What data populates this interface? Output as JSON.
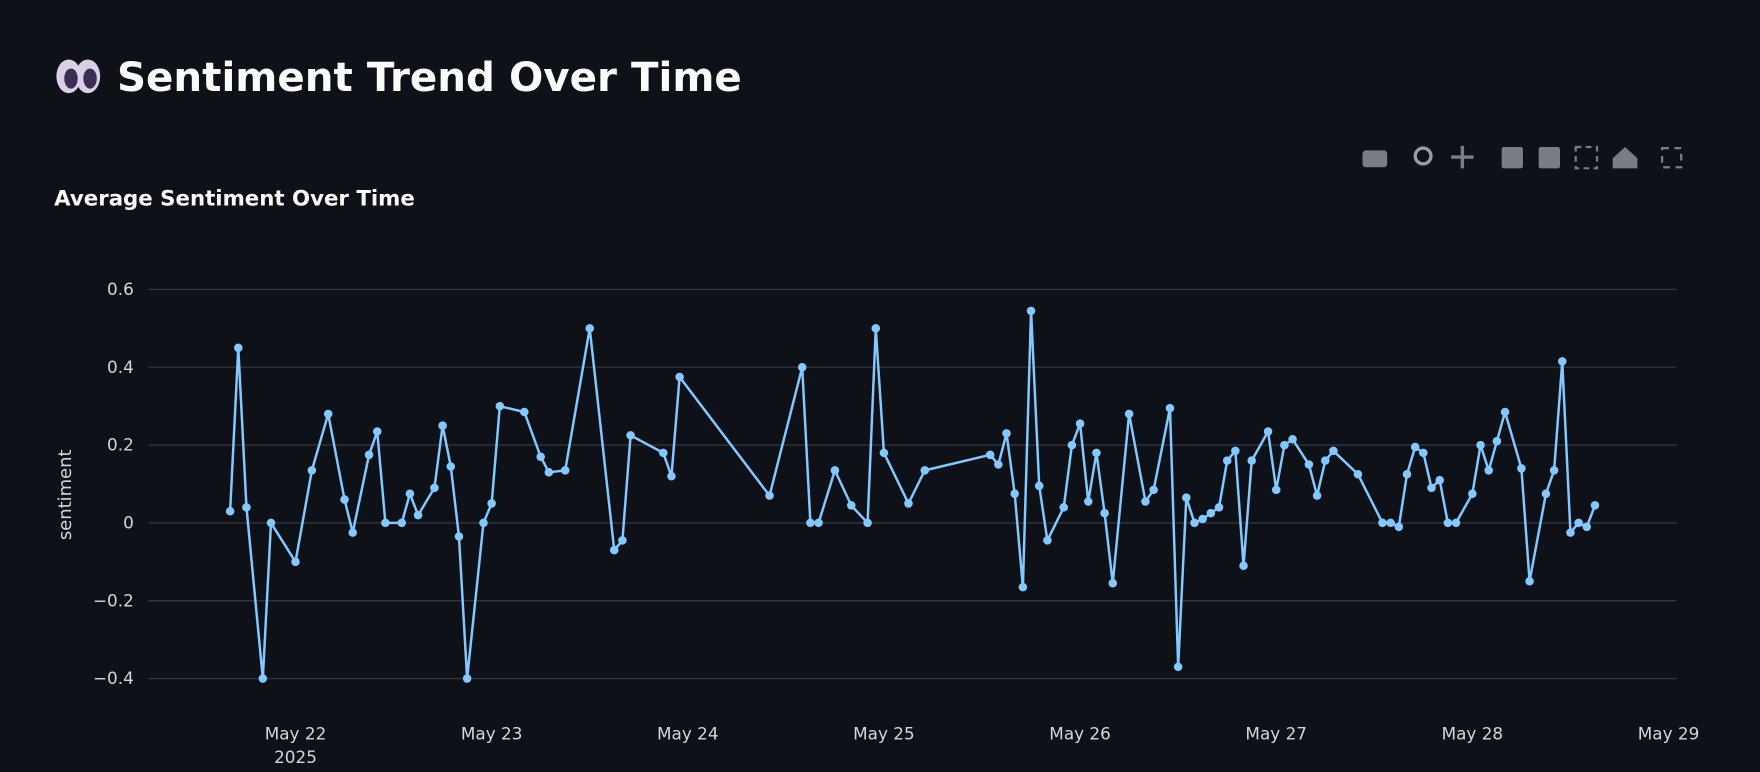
{
  "page_title": "Sentiment Trend Over Time",
  "chart_data": {
    "type": "line",
    "title": "Average Sentiment Over Time",
    "y_label": "sentiment",
    "color": "#83c9ff",
    "grid": true,
    "xlim": [
      "2025-05-21T06:00",
      "2025-05-29T01:00"
    ],
    "xticks": [
      {
        "value": "2025-05-22T00:00",
        "label": "May 22\n2025"
      },
      {
        "value": "2025-05-23T00:00",
        "label": "May 23"
      },
      {
        "value": "2025-05-24T00:00",
        "label": "May 24"
      },
      {
        "value": "2025-05-25T00:00",
        "label": "May 25"
      },
      {
        "value": "2025-05-26T00:00",
        "label": "May 26"
      },
      {
        "value": "2025-05-27T00:00",
        "label": "May 27"
      },
      {
        "value": "2025-05-28T00:00",
        "label": "May 28"
      },
      {
        "value": "2025-05-29T00:00",
        "label": "May 29"
      }
    ],
    "ylim": [
      -0.47,
      0.65
    ],
    "yticks": [
      {
        "value": -0.4,
        "label": "−0.4"
      },
      {
        "value": -0.2,
        "label": "−0.2"
      },
      0,
      0.2,
      0.4,
      0.6
    ],
    "x": [
      "2025-05-21T16:00",
      "2025-05-21T17:00",
      "2025-05-21T18:00",
      "2025-05-21T20:00",
      "2025-05-21T21:00",
      "2025-05-22T00:00",
      "2025-05-22T02:00",
      "2025-05-22T04:00",
      "2025-05-22T06:00",
      "2025-05-22T07:00",
      "2025-05-22T09:00",
      "2025-05-22T10:00",
      "2025-05-22T11:00",
      "2025-05-22T13:00",
      "2025-05-22T14:00",
      "2025-05-22T15:00",
      "2025-05-22T17:00",
      "2025-05-22T18:00",
      "2025-05-22T19:00",
      "2025-05-22T20:00",
      "2025-05-22T21:00",
      "2025-05-22T23:00",
      "2025-05-23T00:00",
      "2025-05-23T01:00",
      "2025-05-23T04:00",
      "2025-05-23T06:00",
      "2025-05-23T07:00",
      "2025-05-23T09:00",
      "2025-05-23T12:00",
      "2025-05-23T15:00",
      "2025-05-23T16:00",
      "2025-05-23T17:00",
      "2025-05-23T21:00",
      "2025-05-23T22:00",
      "2025-05-23T23:00",
      "2025-05-24T10:00",
      "2025-05-24T14:00",
      "2025-05-24T15:00",
      "2025-05-24T16:00",
      "2025-05-24T18:00",
      "2025-05-24T20:00",
      "2025-05-24T22:00",
      "2025-05-24T23:00",
      "2025-05-25T00:00",
      "2025-05-25T03:00",
      "2025-05-25T05:00",
      "2025-05-25T13:00",
      "2025-05-25T14:00",
      "2025-05-25T15:00",
      "2025-05-25T16:00",
      "2025-05-25T17:00",
      "2025-05-25T18:00",
      "2025-05-25T19:00",
      "2025-05-25T20:00",
      "2025-05-25T22:00",
      "2025-05-25T23:00",
      "2025-05-26T00:00",
      "2025-05-26T01:00",
      "2025-05-26T02:00",
      "2025-05-26T03:00",
      "2025-05-26T04:00",
      "2025-05-26T06:00",
      "2025-05-26T08:00",
      "2025-05-26T09:00",
      "2025-05-26T11:00",
      "2025-05-26T12:00",
      "2025-05-26T13:00",
      "2025-05-26T14:00",
      "2025-05-26T15:00",
      "2025-05-26T16:00",
      "2025-05-26T17:00",
      "2025-05-26T18:00",
      "2025-05-26T19:00",
      "2025-05-26T20:00",
      "2025-05-26T21:00",
      "2025-05-26T23:00",
      "2025-05-27T00:00",
      "2025-05-27T01:00",
      "2025-05-27T02:00",
      "2025-05-27T04:00",
      "2025-05-27T05:00",
      "2025-05-27T06:00",
      "2025-05-27T07:00",
      "2025-05-27T10:00",
      "2025-05-27T13:00",
      "2025-05-27T14:00",
      "2025-05-27T15:00",
      "2025-05-27T16:00",
      "2025-05-27T17:00",
      "2025-05-27T18:00",
      "2025-05-27T19:00",
      "2025-05-27T20:00",
      "2025-05-27T21:00",
      "2025-05-27T22:00",
      "2025-05-28T00:00",
      "2025-05-28T01:00",
      "2025-05-28T02:00",
      "2025-05-28T03:00",
      "2025-05-28T04:00",
      "2025-05-28T06:00",
      "2025-05-28T07:00",
      "2025-05-28T09:00",
      "2025-05-28T10:00",
      "2025-05-28T11:00",
      "2025-05-28T12:00",
      "2025-05-28T13:00",
      "2025-05-28T14:00",
      "2025-05-28T15:00"
    ],
    "values": [
      0.03,
      0.45,
      0.04,
      -0.4,
      0,
      -0.1,
      0.135,
      0.28,
      0.06,
      -0.025,
      0.175,
      0.235,
      0,
      0,
      0.075,
      0.02,
      0.09,
      0.25,
      0.145,
      -0.035,
      -0.4,
      0,
      0.05,
      0.3,
      0.285,
      0.17,
      0.13,
      0.135,
      0.5,
      -0.07,
      -0.045,
      0.225,
      0.18,
      0.12,
      0.375,
      0.07,
      0.4,
      0,
      0,
      0.135,
      0.045,
      0,
      0.5,
      0.18,
      0.05,
      0.135,
      0.175,
      0.15,
      0.23,
      0.075,
      -0.165,
      0.545,
      0.095,
      -0.045,
      0.04,
      0.2,
      0.255,
      0.055,
      0.18,
      0.025,
      -0.155,
      0.28,
      0.055,
      0.085,
      0.295,
      -0.37,
      0.065,
      0,
      0.01,
      0.025,
      0.04,
      0.16,
      0.185,
      -0.11,
      0.16,
      0.235,
      0.085,
      0.2,
      0.215,
      0.15,
      0.07,
      0.16,
      0.185,
      0.125,
      0,
      0,
      -0.01,
      0.125,
      0.195,
      0.18,
      0.09,
      0.11,
      0,
      0,
      0.075,
      0.2,
      0.135,
      0.21,
      0.285,
      0.14,
      -0.15,
      0.075,
      0.135,
      0.415,
      -0.025,
      0,
      -0.01,
      0.045
    ]
  }
}
